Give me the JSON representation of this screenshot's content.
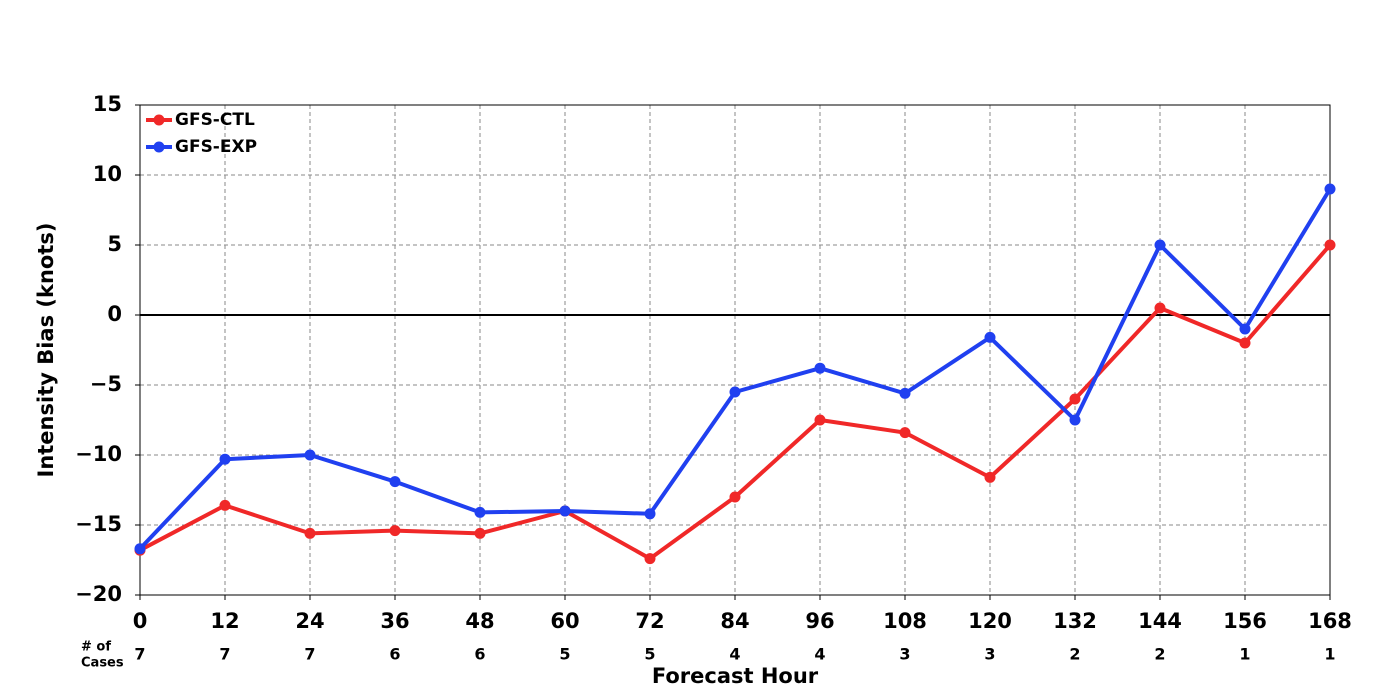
{
  "chart_data": {
    "type": "line",
    "x": [
      0,
      12,
      24,
      36,
      48,
      60,
      72,
      84,
      96,
      108,
      120,
      132,
      144,
      156,
      168
    ],
    "xlim": [
      0,
      168
    ],
    "xticks": [
      0,
      12,
      24,
      36,
      48,
      60,
      72,
      84,
      96,
      108,
      120,
      132,
      144,
      156,
      168
    ],
    "ylim": [
      -20,
      15
    ],
    "yticks": [
      {
        "value": -20,
        "label": "−20"
      },
      {
        "value": -15,
        "label": "−15"
      },
      {
        "value": -10,
        "label": "−10"
      },
      {
        "value": -5,
        "label": "−5"
      },
      0,
      5,
      10,
      15
    ],
    "y_label": "Intensity Bias (knots)",
    "x_label": "Forecast Hour",
    "cases_label_lines": [
      "# of",
      "Cases"
    ],
    "cases": [
      7,
      7,
      7,
      6,
      6,
      5,
      5,
      4,
      4,
      3,
      3,
      2,
      2,
      1,
      1
    ],
    "grid": true,
    "zero_line": true,
    "legend": "upper left",
    "series": [
      {
        "name": "GFS-CTL",
        "color": "#f02828",
        "values": [
          -16.8,
          -13.6,
          -15.6,
          -15.4,
          -15.6,
          -14.0,
          -17.4,
          -13.0,
          -7.5,
          -8.4,
          -11.6,
          -6.0,
          0.5,
          -2.0,
          5.0
        ]
      },
      {
        "name": "GFS-EXP",
        "color": "#2040f0",
        "values": [
          -16.7,
          -10.3,
          -10.0,
          -11.9,
          -14.1,
          -14.0,
          -14.2,
          -5.5,
          -3.8,
          -5.6,
          -1.6,
          -7.5,
          5.0,
          -1.0,
          9.0
        ]
      }
    ]
  }
}
